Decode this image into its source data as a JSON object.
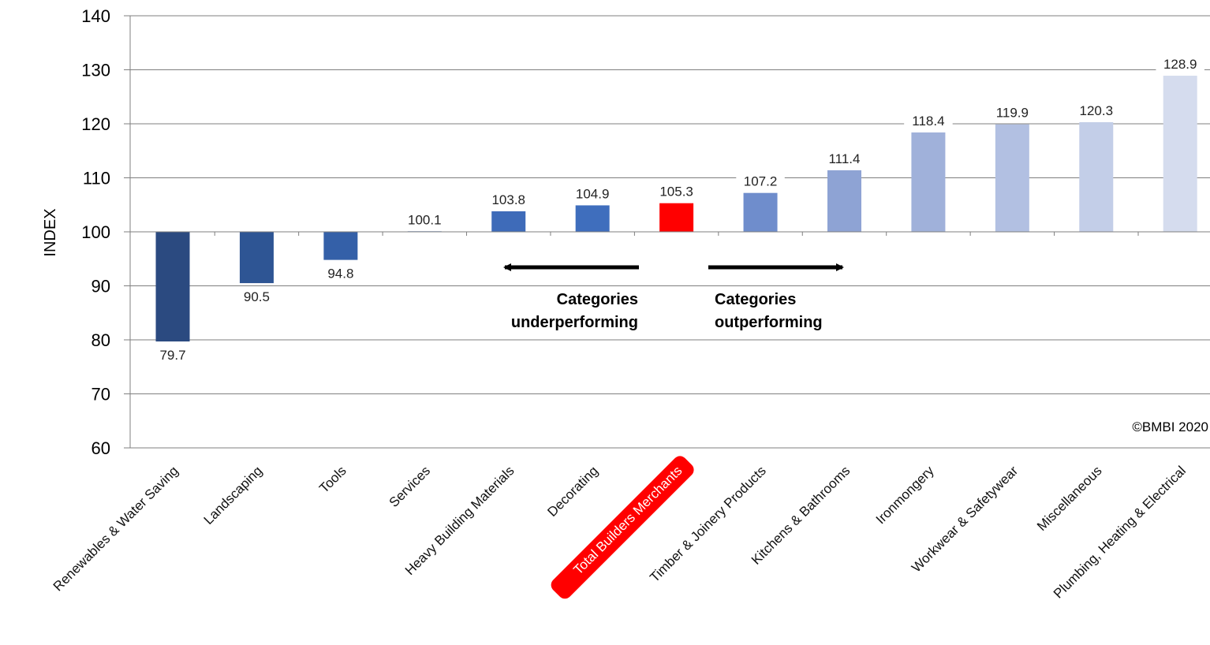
{
  "chart_data": {
    "type": "bar",
    "ylabel": "INDEX",
    "ylim": [
      60,
      140
    ],
    "yticks": [
      60,
      70,
      80,
      90,
      100,
      110,
      120,
      130,
      140
    ],
    "baseline": 100,
    "grid": "horizontal",
    "categories": [
      "Renewables & Water Saving",
      "Landscaping",
      "Tools",
      "Services",
      "Heavy Building Materials",
      "Decorating",
      "Total Builders Merchants",
      "Timber & Joinery Products",
      "Kitchens & Bathrooms",
      "Ironmongery",
      "Workwear & Safetywear",
      "Miscellaneous",
      "Plumbing, Heating & Electrical"
    ],
    "values": [
      79.7,
      90.5,
      94.8,
      100.1,
      103.8,
      104.9,
      105.3,
      107.2,
      111.4,
      118.4,
      119.9,
      120.3,
      128.9
    ],
    "value_labels": [
      "79.7",
      "90.5",
      "94.8",
      "100.1",
      "103.8",
      "104.9",
      "105.3",
      "107.2",
      "111.4",
      "118.4",
      "119.9",
      "120.3",
      "128.9"
    ],
    "colors": [
      "#2b4a80",
      "#2e5594",
      "#3460a8",
      "#3a68b4",
      "#3e6bb9",
      "#3f6ebd",
      "#ff0000",
      "#6f8dcc",
      "#8ea3d4",
      "#a0b1da",
      "#b2c0e2",
      "#c3cee8",
      "#d5dcee"
    ],
    "highlight_category": "Total Builders Merchants",
    "highlight_color": "#ff0000",
    "annotations": {
      "left_line1": "Categories",
      "left_line2": "underperforming",
      "right_line1": "Categories",
      "right_line2": "outperforming"
    },
    "copyright": "©BMBI 2020"
  }
}
